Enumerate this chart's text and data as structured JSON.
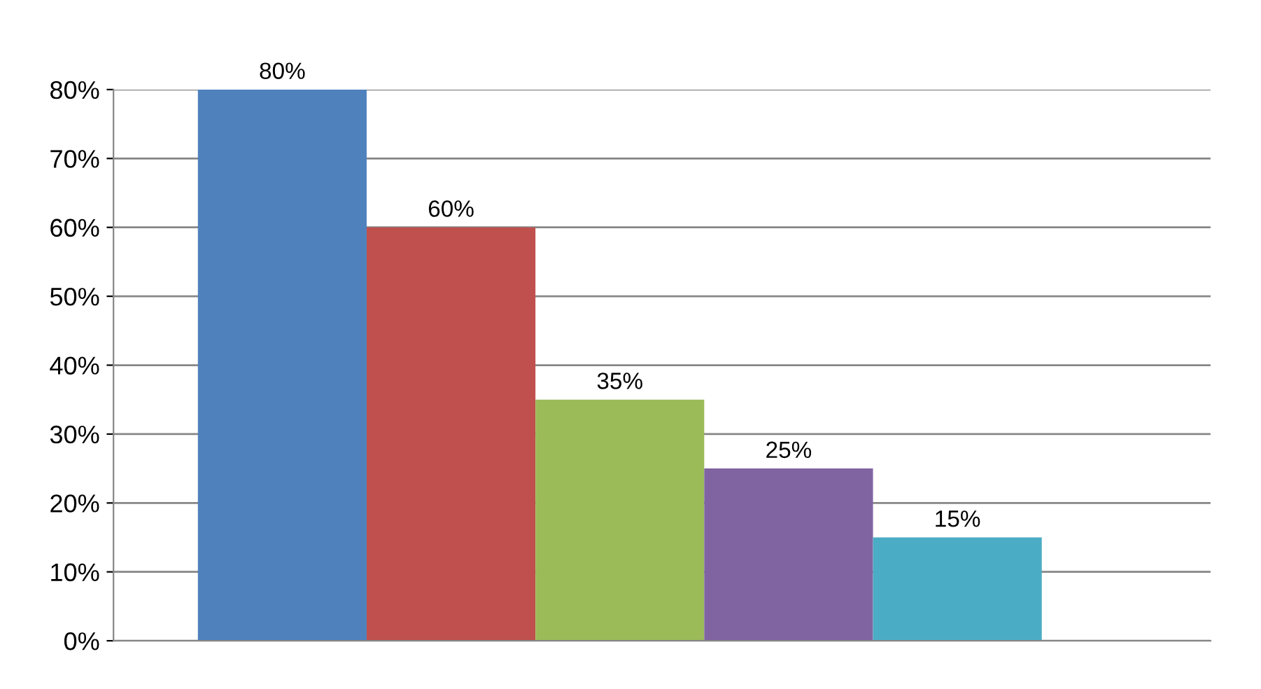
{
  "chart_data": {
    "type": "bar",
    "categories": [
      null,
      null,
      null,
      null,
      null
    ],
    "values": [
      80,
      60,
      35,
      25,
      15
    ],
    "colors": [
      "#4f81bd",
      "#c0504d",
      "#9bbb59",
      "#8064a2",
      "#4bacc6"
    ],
    "value_labels": [
      "80%",
      "60%",
      "35%",
      "25%",
      "15%"
    ],
    "ylim": [
      0,
      80
    ],
    "yticks": [
      {
        "value": 0,
        "label": "0%"
      },
      {
        "value": 10,
        "label": "10%"
      },
      {
        "value": 20,
        "label": "20%"
      },
      {
        "value": 30,
        "label": "30%"
      },
      {
        "value": 40,
        "label": "40%"
      },
      {
        "value": 50,
        "label": "50%"
      },
      {
        "value": 60,
        "label": "60%"
      },
      {
        "value": 70,
        "label": "70%"
      },
      {
        "value": 80,
        "label": "80%"
      }
    ],
    "grid": "y",
    "tick_labels": "y"
  }
}
